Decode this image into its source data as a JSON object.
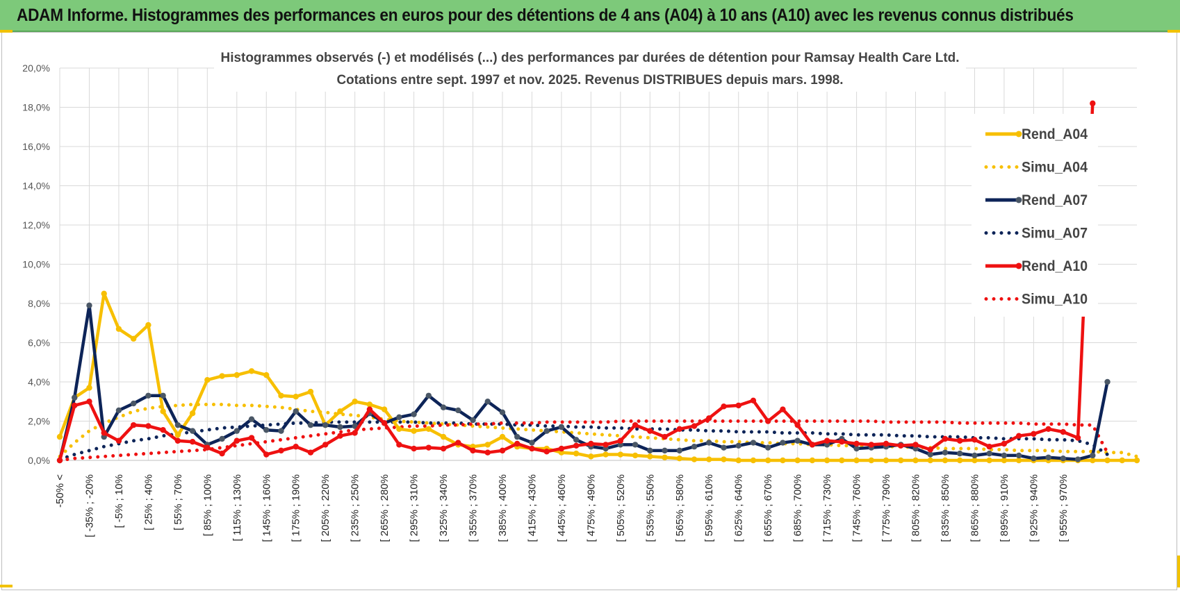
{
  "header": {
    "title": "ADAM Informe. Histogrammes des performances en euros pour des détentions de 4 ans (A04) à 10 ans (A10) avec les revenus connus distribués"
  },
  "colors": {
    "header_bg": "#7dc97a",
    "a04": "#f7bf00",
    "a07": "#0d2458",
    "a07_marker": "#4a5766",
    "a10": "#ee1111",
    "grid": "#d9d9d9"
  },
  "chart_data": {
    "type": "line",
    "title_lines": [
      "Histogrammes observés (-) et modélisés (...) des performances par durées de détention pour Ramsay Health Care Ltd.",
      "Cotations entre sept. 1997 et nov. 2025. Revenus DISTRIBUES depuis mars. 1998."
    ],
    "ylim": [
      0,
      20
    ],
    "y_ticks": [
      "0,0%",
      "2,0%",
      "4,0%",
      "6,0%",
      "8,0%",
      "10,0%",
      "12,0%",
      "14,0%",
      "16,0%",
      "18,0%",
      "20,0%"
    ],
    "x_tick_labels": [
      "-50% <",
      "[ -35% ; -20%",
      "[ -5% ; 10%",
      "[ 25% ; 40%",
      "[ 55% ; 70%",
      "[ 85% ; 100%",
      "[ 115% ; 130%",
      "[ 145% ; 160%",
      "[ 175% ; 190%",
      "[ 205% ; 220%",
      "[ 235% ; 250%",
      "[ 265% ; 280%",
      "[ 295% ; 310%",
      "[ 325% ; 340%",
      "[ 355% ; 370%",
      "[ 385% ; 400%",
      "[ 415% ; 430%",
      "[ 445% ; 460%",
      "[ 475% ; 490%",
      "[ 505% ; 520%",
      "[ 535% ; 550%",
      "[ 565% ; 580%",
      "[ 595% ; 610%",
      "[ 625% ; 640%",
      "[ 655% ; 670%",
      "[ 685% ; 700%",
      "[ 715% ; 730%",
      "[ 745% ; 760%",
      "[ 775% ; 790%",
      "[ 805% ; 820%",
      "[ 835% ; 850%",
      "[ 865% ; 880%",
      "[ 895% ; 910%",
      "[ 925% ; 940%",
      "[ 955% ; 970%"
    ],
    "legend_position": "right",
    "grid": true,
    "series": [
      {
        "name": "Rend_A04",
        "style": "solid-marker",
        "color": "#f7bf00",
        "values": [
          1.2,
          3.2,
          3.7,
          8.5,
          6.7,
          6.2,
          6.9,
          2.5,
          1.3,
          2.4,
          4.1,
          4.3,
          4.35,
          4.55,
          4.35,
          3.3,
          3.25,
          3.5,
          1.8,
          2.5,
          3.0,
          2.85,
          2.6,
          1.6,
          1.5,
          1.6,
          1.2,
          0.8,
          0.7,
          0.8,
          1.2,
          0.7,
          0.6,
          0.6,
          0.4,
          0.35,
          0.2,
          0.3,
          0.3,
          0.25,
          0.2,
          0.15,
          0.1,
          0.05,
          0.05,
          0.05,
          0.0,
          0.0,
          0.0,
          0.0,
          0.0,
          0.0,
          0.0,
          0.0,
          0.0,
          0.0,
          0.0,
          0.0,
          0.0,
          0.0,
          0.0,
          0.0,
          0.0,
          0.0,
          0.0,
          0.0,
          0.0,
          0.0,
          0.0,
          0.0,
          0.0,
          0.0,
          0.0,
          0.0
        ]
      },
      {
        "name": "Simu_A04",
        "style": "dotted",
        "color": "#f7bf00",
        "values": [
          0.2,
          0.9,
          1.5,
          1.9,
          2.2,
          2.5,
          2.65,
          2.75,
          2.8,
          2.85,
          2.85,
          2.85,
          2.8,
          2.8,
          2.75,
          2.7,
          2.6,
          2.5,
          2.45,
          2.35,
          2.3,
          2.2,
          2.1,
          2.0,
          1.95,
          1.9,
          1.85,
          1.8,
          1.75,
          1.7,
          1.65,
          1.6,
          1.55,
          1.5,
          1.45,
          1.4,
          1.35,
          1.3,
          1.25,
          1.2,
          1.15,
          1.1,
          1.05,
          1.0,
          1.0,
          0.95,
          0.95,
          0.9,
          0.9,
          0.85,
          0.85,
          0.8,
          0.8,
          0.75,
          0.75,
          0.7,
          0.7,
          0.7,
          0.65,
          0.65,
          0.6,
          0.6,
          0.6,
          0.55,
          0.55,
          0.5,
          0.5,
          0.5,
          0.45,
          0.45,
          0.45,
          0.4,
          0.4,
          0.2
        ]
      },
      {
        "name": "Rend_A07",
        "style": "solid-marker",
        "color": "#0d2458",
        "values": [
          0.0,
          3.2,
          7.9,
          1.2,
          2.55,
          2.9,
          3.3,
          3.3,
          1.8,
          1.5,
          0.8,
          1.1,
          1.5,
          2.1,
          1.55,
          1.5,
          2.5,
          1.8,
          1.8,
          1.7,
          1.75,
          2.4,
          1.9,
          2.2,
          2.35,
          3.3,
          2.7,
          2.55,
          2.05,
          3.0,
          2.45,
          1.2,
          0.9,
          1.5,
          1.7,
          1.05,
          0.7,
          0.6,
          0.8,
          0.8,
          0.5,
          0.5,
          0.5,
          0.7,
          0.9,
          0.65,
          0.75,
          0.9,
          0.65,
          0.9,
          1.0,
          0.8,
          0.8,
          1.1,
          0.6,
          0.65,
          0.7,
          0.8,
          0.6,
          0.3,
          0.4,
          0.35,
          0.25,
          0.35,
          0.25,
          0.25,
          0.1,
          0.15,
          0.1,
          0.05,
          0.25,
          4.0
        ]
      },
      {
        "name": "Simu_A07",
        "style": "dotted",
        "color": "#0d2458",
        "values": [
          0.05,
          0.3,
          0.5,
          0.7,
          0.85,
          1.0,
          1.1,
          1.25,
          1.35,
          1.45,
          1.55,
          1.65,
          1.7,
          1.75,
          1.8,
          1.85,
          1.9,
          1.9,
          1.95,
          1.95,
          1.95,
          1.95,
          1.95,
          1.95,
          1.95,
          1.9,
          1.9,
          1.9,
          1.85,
          1.85,
          1.85,
          1.8,
          1.8,
          1.75,
          1.75,
          1.7,
          1.7,
          1.65,
          1.65,
          1.6,
          1.6,
          1.6,
          1.55,
          1.55,
          1.5,
          1.5,
          1.45,
          1.45,
          1.45,
          1.4,
          1.4,
          1.4,
          1.35,
          1.35,
          1.3,
          1.3,
          1.3,
          1.25,
          1.25,
          1.2,
          1.2,
          1.2,
          1.15,
          1.15,
          1.1,
          1.1,
          1.1,
          1.05,
          1.05,
          1.0,
          0.8,
          0.3
        ]
      },
      {
        "name": "Rend_A10",
        "style": "solid-marker",
        "color": "#ee1111",
        "values": [
          0.0,
          2.8,
          3.0,
          1.4,
          1.0,
          1.8,
          1.75,
          1.55,
          1.0,
          0.95,
          0.65,
          0.35,
          1.0,
          1.15,
          0.3,
          0.5,
          0.7,
          0.4,
          0.8,
          1.25,
          1.4,
          2.6,
          1.9,
          0.8,
          0.6,
          0.65,
          0.6,
          0.9,
          0.5,
          0.4,
          0.5,
          0.85,
          0.6,
          0.45,
          0.6,
          0.75,
          0.85,
          0.8,
          1.0,
          1.8,
          1.5,
          1.2,
          1.6,
          1.75,
          2.15,
          2.75,
          2.8,
          3.05,
          2.0,
          2.6,
          1.8,
          0.8,
          1.0,
          0.95,
          0.85,
          0.8,
          0.85,
          0.75,
          0.8,
          0.55,
          1.1,
          1.0,
          1.05,
          0.7,
          0.85,
          1.25,
          1.35,
          1.6,
          1.45,
          1.15,
          18.2
        ]
      },
      {
        "name": "Simu_A10",
        "style": "dotted",
        "color": "#ee1111",
        "values": [
          0.0,
          0.1,
          0.15,
          0.2,
          0.25,
          0.3,
          0.35,
          0.4,
          0.45,
          0.5,
          0.55,
          0.65,
          0.75,
          0.85,
          0.95,
          1.05,
          1.15,
          1.25,
          1.35,
          1.45,
          1.55,
          1.6,
          1.65,
          1.7,
          1.75,
          1.75,
          1.8,
          1.8,
          1.85,
          1.85,
          1.9,
          1.9,
          1.9,
          1.95,
          1.95,
          1.95,
          1.95,
          1.95,
          2.0,
          2.0,
          2.0,
          2.0,
          2.0,
          2.0,
          2.0,
          2.0,
          2.0,
          2.0,
          2.0,
          2.0,
          2.0,
          2.0,
          2.0,
          2.0,
          2.0,
          2.0,
          1.95,
          1.95,
          1.95,
          1.95,
          1.95,
          1.9,
          1.9,
          1.9,
          1.9,
          1.9,
          1.85,
          1.85,
          1.85,
          1.8,
          1.8,
          0.4
        ]
      }
    ]
  }
}
